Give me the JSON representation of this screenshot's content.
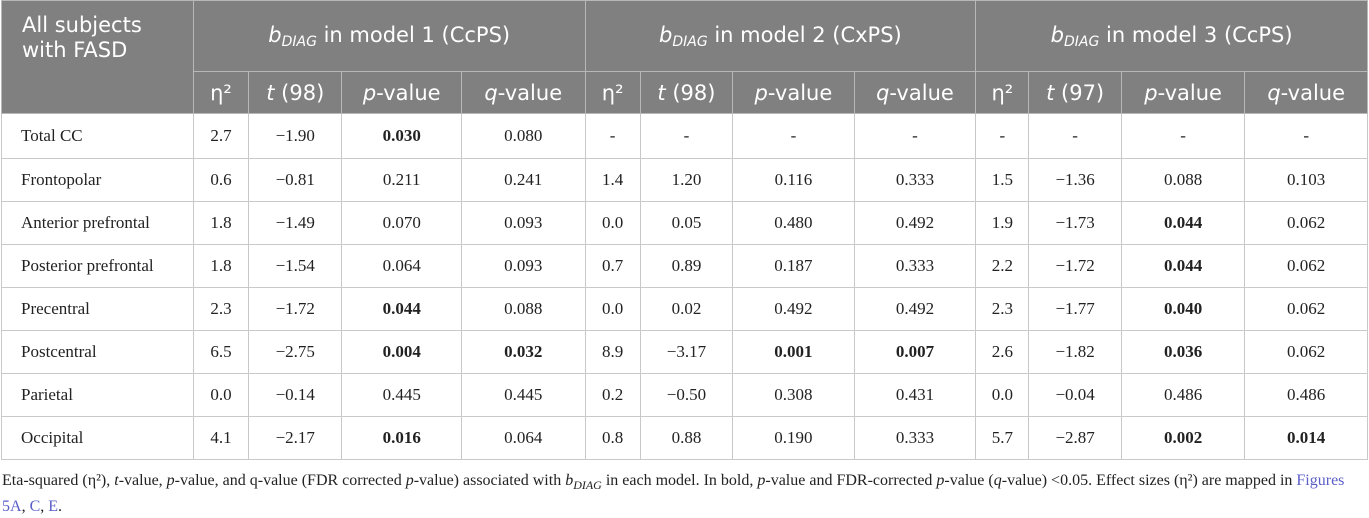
{
  "header": {
    "corner_label": "All subjects with FASD",
    "groups": [
      {
        "prefix": "b",
        "subscript": "DIAG",
        "suffix": " in model 1 (CcPS)"
      },
      {
        "prefix": "b",
        "subscript": "DIAG",
        "suffix": " in model 2 (CxPS)"
      },
      {
        "prefix": "b",
        "subscript": "DIAG",
        "suffix": " in model 3 (CcPS)"
      }
    ],
    "subcols": [
      {
        "eta": "η²",
        "t_var": "t",
        "t_df": " (98)",
        "p_var": "p",
        "p_rest": "-value",
        "q_var": "q",
        "q_rest": "-value"
      },
      {
        "eta": "η²",
        "t_var": "t",
        "t_df": " (98)",
        "p_var": "p",
        "p_rest": "-value",
        "q_var": "q",
        "q_rest": "-value"
      },
      {
        "eta": "η²",
        "t_var": "t",
        "t_df": " (97)",
        "p_var": "p",
        "p_rest": "-value",
        "q_var": "q",
        "q_rest": "-value"
      }
    ]
  },
  "rows": [
    {
      "label": "Total CC",
      "cells": [
        "2.7",
        "−1.90",
        "0.030",
        "0.080",
        "-",
        "-",
        "-",
        "-",
        "-",
        "-",
        "-",
        "-"
      ],
      "bold": [
        2
      ]
    },
    {
      "label": "Frontopolar",
      "cells": [
        "0.6",
        "−0.81",
        "0.211",
        "0.241",
        "1.4",
        "1.20",
        "0.116",
        "0.333",
        "1.5",
        "−1.36",
        "0.088",
        "0.103"
      ],
      "bold": []
    },
    {
      "label": "Anterior prefrontal",
      "cells": [
        "1.8",
        "−1.49",
        "0.070",
        "0.093",
        "0.0",
        "0.05",
        "0.480",
        "0.492",
        "1.9",
        "−1.73",
        "0.044",
        "0.062"
      ],
      "bold": [
        10
      ]
    },
    {
      "label": "Posterior prefrontal",
      "cells": [
        "1.8",
        "−1.54",
        "0.064",
        "0.093",
        "0.7",
        "0.89",
        "0.187",
        "0.333",
        "2.2",
        "−1.72",
        "0.044",
        "0.062"
      ],
      "bold": [
        10
      ]
    },
    {
      "label": "Precentral",
      "cells": [
        "2.3",
        "−1.72",
        "0.044",
        "0.088",
        "0.0",
        "0.02",
        "0.492",
        "0.492",
        "2.3",
        "−1.77",
        "0.040",
        "0.062"
      ],
      "bold": [
        2,
        10
      ]
    },
    {
      "label": "Postcentral",
      "cells": [
        "6.5",
        "−2.75",
        "0.004",
        "0.032",
        "8.9",
        "−3.17",
        "0.001",
        "0.007",
        "2.6",
        "−1.82",
        "0.036",
        "0.062"
      ],
      "bold": [
        2,
        3,
        6,
        7,
        10
      ]
    },
    {
      "label": "Parietal",
      "cells": [
        "0.0",
        "−0.14",
        "0.445",
        "0.445",
        "0.2",
        "−0.50",
        "0.308",
        "0.431",
        "0.0",
        "−0.04",
        "0.486",
        "0.486"
      ],
      "bold": []
    },
    {
      "label": "Occipital",
      "cells": [
        "4.1",
        "−2.17",
        "0.016",
        "0.064",
        "0.8",
        "0.88",
        "0.190",
        "0.333",
        "5.7",
        "−2.87",
        "0.002",
        "0.014"
      ],
      "bold": [
        2,
        10,
        11
      ]
    }
  ],
  "footnote": {
    "a": "Eta-squared (η²), ",
    "b": "t",
    "c": "-value, ",
    "d": "p",
    "e": "-value, and q-value (FDR corrected ",
    "f": "p",
    "g": "-value) associated with ",
    "h": "b",
    "i": "DIAG",
    "j": " in each model. In bold, ",
    "k": "p",
    "l": "-value and FDR-corrected ",
    "m": "p",
    "n": "-value (",
    "o": "q",
    "p": "-value) <0.05. Effect sizes (η²) are mapped in ",
    "link1": "Figures 5A",
    "sep1": ", ",
    "link2": "C",
    "sep2": ", ",
    "link3": "E",
    "end": "."
  },
  "colors": {
    "header_bg": "#808080",
    "header_text": "#ffffff",
    "link": "#5b5fc7"
  }
}
